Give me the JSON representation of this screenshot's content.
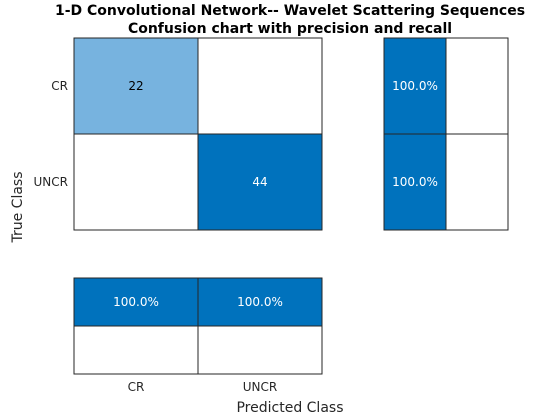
{
  "chart_data": {
    "type": "heatmap",
    "title": "1-D Convolutional Network-- Wavelet Scattering Sequences",
    "subtitle": "Confusion chart with precision and recall",
    "xlabel": "Predicted Class",
    "ylabel": "True Class",
    "classes": [
      "CR",
      "UNCR"
    ],
    "matrix": [
      [
        22,
        0
      ],
      [
        0,
        44
      ]
    ],
    "matrix_labels": [
      [
        "22",
        ""
      ],
      [
        "",
        "44"
      ]
    ],
    "row_summary": [
      "100.0%",
      "100.0%"
    ],
    "column_summary": [
      "100.0%",
      "100.0%"
    ],
    "summary_value": 1.0,
    "colors": {
      "max": "#0072BD",
      "light": "#77B3DF",
      "empty": "#FFFFFF",
      "grid": "#262626",
      "dark_text": "#000000",
      "light_text": "#FFFFFF"
    }
  }
}
